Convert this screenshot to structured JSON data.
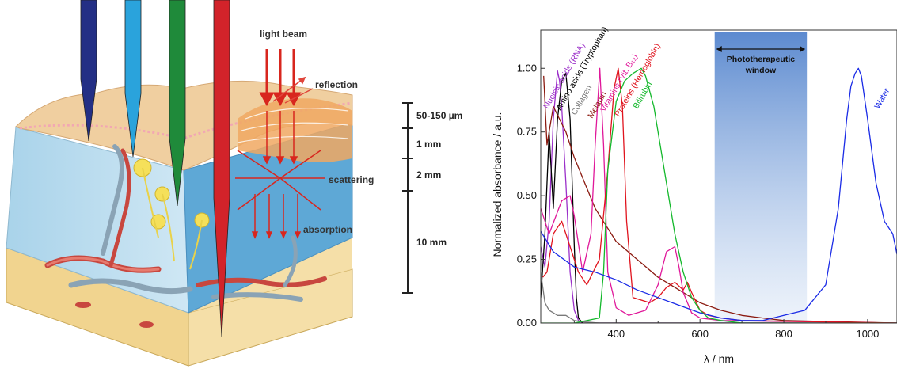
{
  "figure": {
    "skin_diagram": {
      "beam_label": "light beam",
      "reflection_label": "reflection",
      "scattering_label": "scattering",
      "absorption_label": "absorption",
      "probe_colors": [
        "#232f85",
        "#2aa3dc",
        "#1f8a3a",
        "#d2232a"
      ],
      "depth_scale": [
        {
          "label": "50-150 µm"
        },
        {
          "label": "1 mm"
        },
        {
          "label": "2 mm"
        },
        {
          "label": "10 mm"
        }
      ]
    }
  },
  "chart_data": {
    "type": "line",
    "title": "",
    "xlabel": "λ / nm",
    "ylabel": "Normalized absorbance / a.u.",
    "xlim": [
      220,
      1070
    ],
    "ylim": [
      0,
      1.15
    ],
    "xticks": [
      400,
      600,
      800,
      1000
    ],
    "yticks": [
      0.0,
      0.25,
      0.5,
      0.75,
      1.0
    ],
    "xtick_labels": [
      "400",
      "600",
      "800",
      "1000"
    ],
    "ytick_labels": [
      "0.00",
      "0.25",
      "0.50",
      "0.75",
      "1.00"
    ],
    "grid": false,
    "window": {
      "label_line1": "Phototherapeutic",
      "label_line2": "window",
      "from": 635,
      "to": 855
    },
    "series": [
      {
        "name": "Nucleic acids (RNA)",
        "color": "#9b2fc9",
        "x": [
          220,
          230,
          240,
          250,
          260,
          265,
          270,
          280,
          290,
          300,
          310,
          320,
          340,
          400,
          1070
        ],
        "y": [
          0.3,
          0.22,
          0.4,
          0.8,
          0.99,
          0.95,
          0.85,
          0.55,
          0.2,
          0.05,
          0.01,
          0,
          0,
          0,
          0
        ]
      },
      {
        "name": "Amino acids (Tryptophan)",
        "color": "#000000",
        "x": [
          220,
          230,
          240,
          250,
          260,
          270,
          280,
          290,
          300,
          305,
          310,
          320,
          340,
          400,
          1070
        ],
        "y": [
          0.1,
          0.35,
          0.75,
          0.45,
          0.8,
          0.95,
          0.98,
          0.8,
          0.3,
          0.1,
          0.02,
          0,
          0,
          0,
          0
        ]
      },
      {
        "name": "Collagen",
        "color": "#7a7a7a",
        "x": [
          220,
          230,
          240,
          250,
          260,
          270,
          280,
          290,
          300,
          320,
          360,
          400,
          1070
        ],
        "y": [
          0.2,
          0.08,
          0.05,
          0.04,
          0.03,
          0.03,
          0.03,
          0.02,
          0.01,
          0.005,
          0,
          0,
          0
        ]
      },
      {
        "name": "Melanin",
        "color": "#8b1a10",
        "x": [
          227,
          235,
          250,
          280,
          300,
          350,
          400,
          450,
          500,
          550,
          600,
          650,
          700,
          750,
          800,
          1070
        ],
        "y": [
          0.97,
          0.7,
          0.85,
          0.75,
          0.65,
          0.45,
          0.32,
          0.25,
          0.18,
          0.13,
          0.08,
          0.05,
          0.03,
          0.02,
          0.01,
          0
        ]
      },
      {
        "name": "Vitamins (Vit. B₁₂)",
        "color": "#e0189a",
        "x": [
          220,
          240,
          270,
          290,
          300,
          320,
          340,
          350,
          361,
          370,
          380,
          400,
          430,
          470,
          500,
          520,
          540,
          550,
          560,
          580,
          600,
          650,
          1070
        ],
        "y": [
          0.45,
          0.35,
          0.48,
          0.5,
          0.42,
          0.2,
          0.35,
          0.7,
          1.0,
          0.7,
          0.2,
          0.06,
          0.03,
          0.05,
          0.15,
          0.28,
          0.3,
          0.22,
          0.12,
          0.04,
          0.02,
          0.01,
          0
        ]
      },
      {
        "name": "Proteins (Hemoglobin)",
        "color": "#e0141e",
        "x": [
          225,
          235,
          250,
          270,
          290,
          310,
          330,
          360,
          380,
          395,
          405,
          415,
          425,
          440,
          480,
          500,
          520,
          540,
          560,
          570,
          580,
          600,
          620,
          650,
          700,
          1070
        ],
        "y": [
          0.18,
          0.2,
          0.35,
          0.4,
          0.3,
          0.2,
          0.15,
          0.25,
          0.6,
          0.92,
          1.0,
          0.85,
          0.4,
          0.1,
          0.08,
          0.1,
          0.14,
          0.16,
          0.13,
          0.16,
          0.12,
          0.05,
          0.03,
          0.02,
          0.01,
          0
        ]
      },
      {
        "name": "Bilirubin",
        "color": "#13b82b",
        "x": [
          220,
          300,
          360,
          370,
          380,
          400,
          420,
          440,
          460,
          470,
          490,
          500,
          520,
          540,
          560,
          580,
          600,
          620,
          650,
          700,
          1070
        ],
        "y": [
          0,
          0,
          0.02,
          0.2,
          0.6,
          0.87,
          0.95,
          0.98,
          1.0,
          0.97,
          0.85,
          0.75,
          0.55,
          0.35,
          0.2,
          0.1,
          0.05,
          0.02,
          0.01,
          0,
          0
        ]
      },
      {
        "name": "Water",
        "color": "#1a2be6",
        "x": [
          220,
          250,
          300,
          350,
          400,
          450,
          500,
          550,
          600,
          650,
          700,
          750,
          800,
          850,
          900,
          930,
          950,
          960,
          970,
          978,
          985,
          1000,
          1020,
          1040,
          1060,
          1070
        ],
        "y": [
          0.36,
          0.28,
          0.22,
          0.2,
          0.17,
          0.13,
          0.1,
          0.07,
          0.04,
          0.02,
          0.01,
          0.01,
          0.03,
          0.05,
          0.15,
          0.45,
          0.8,
          0.93,
          0.98,
          1.0,
          0.97,
          0.8,
          0.55,
          0.4,
          0.35,
          0.27
        ]
      }
    ]
  }
}
